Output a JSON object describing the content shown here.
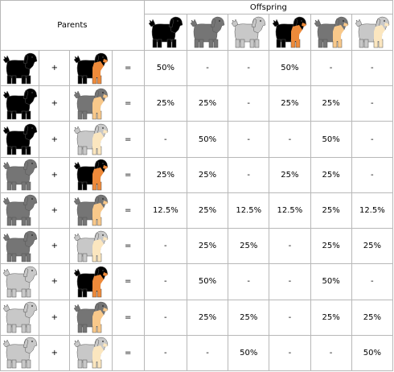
{
  "header": {
    "parents_label": "Parents",
    "offspring_label": "Offspring"
  },
  "palette": {
    "black": {
      "body": "#000000",
      "accent": "#000000"
    },
    "dark_gray": {
      "body": "#757575",
      "accent": "#757575"
    },
    "light_gray": {
      "body": "#c8c8c8",
      "accent": "#c8c8c8"
    },
    "black_tan": {
      "body": "#000000",
      "accent": "#ee8a3a"
    },
    "gray_tan": {
      "body": "#757575",
      "accent": "#f8c88a"
    },
    "cream_tan": {
      "body": "#c8c8c8",
      "accent": "#fbe6bf"
    }
  },
  "offspring_types": [
    "black",
    "dark_gray",
    "light_gray",
    "black_tan",
    "gray_tan",
    "cream_tan"
  ],
  "symbols": {
    "plus": "+",
    "equals": "="
  },
  "rows": [
    {
      "p1": "black",
      "p2": "black_tan",
      "cells": [
        "50%",
        "-",
        "-",
        "50%",
        "-",
        "-"
      ]
    },
    {
      "p1": "black",
      "p2": "gray_tan",
      "cells": [
        "25%",
        "25%",
        "-",
        "25%",
        "25%",
        "-"
      ]
    },
    {
      "p1": "black",
      "p2": "cream_tan",
      "cells": [
        "-",
        "50%",
        "-",
        "-",
        "50%",
        "-"
      ]
    },
    {
      "p1": "dark_gray",
      "p2": "black_tan",
      "cells": [
        "25%",
        "25%",
        "-",
        "25%",
        "25%",
        "-"
      ]
    },
    {
      "p1": "dark_gray",
      "p2": "gray_tan",
      "cells": [
        "12.5%",
        "25%",
        "12.5%",
        "12.5%",
        "25%",
        "12.5%"
      ]
    },
    {
      "p1": "dark_gray",
      "p2": "cream_tan",
      "cells": [
        "-",
        "25%",
        "25%",
        "-",
        "25%",
        "25%"
      ]
    },
    {
      "p1": "light_gray",
      "p2": "black_tan",
      "cells": [
        "-",
        "50%",
        "-",
        "-",
        "50%",
        "-"
      ]
    },
    {
      "p1": "light_gray",
      "p2": "gray_tan",
      "cells": [
        "-",
        "25%",
        "25%",
        "-",
        "25%",
        "25%"
      ]
    },
    {
      "p1": "light_gray",
      "p2": "cream_tan",
      "cells": [
        "-",
        "-",
        "50%",
        "-",
        "-",
        "50%"
      ]
    }
  ]
}
